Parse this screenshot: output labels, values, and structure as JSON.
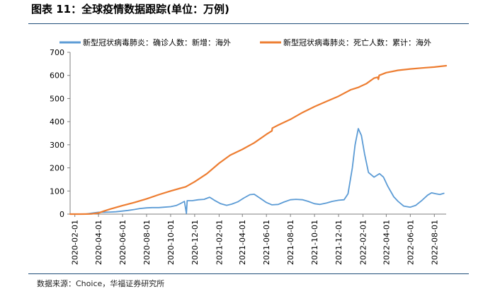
{
  "header": {
    "title": "图表 11：全球疫情数据跟踪(单位：万例)"
  },
  "footer": {
    "source": "数据来源：Choice，华福证券研究所"
  },
  "chart_data": {
    "type": "line",
    "title": "图表 11：全球疫情数据跟踪(单位：万例)",
    "xlabel": "",
    "ylabel": "",
    "ylim": [
      0,
      700
    ],
    "yticks": [
      0,
      100,
      200,
      300,
      400,
      500,
      600,
      700
    ],
    "xlim": [
      "2020-01-20",
      "2022-08-31"
    ],
    "xticks": [
      "2020-02-01",
      "2020-04-01",
      "2020-06-01",
      "2020-08-01",
      "2020-10-01",
      "2020-12-01",
      "2021-02-01",
      "2021-04-01",
      "2021-06-01",
      "2021-08-01",
      "2021-10-01",
      "2021-12-01",
      "2022-02-01",
      "2022-04-01",
      "2022-06-01",
      "2022-08-01"
    ],
    "grid": false,
    "legend_position": "top",
    "series": [
      {
        "name": "新型冠状病毒肺炎：确诊人数：新增：海外",
        "color": "#5b9bd5",
        "points": [
          [
            "2020-01-20",
            0
          ],
          [
            "2020-02-15",
            0
          ],
          [
            "2020-03-01",
            0.5
          ],
          [
            "2020-03-15",
            4
          ],
          [
            "2020-04-01",
            8
          ],
          [
            "2020-04-15",
            8
          ],
          [
            "2020-05-01",
            9
          ],
          [
            "2020-05-15",
            10
          ],
          [
            "2020-06-01",
            13
          ],
          [
            "2020-06-15",
            16
          ],
          [
            "2020-07-01",
            20
          ],
          [
            "2020-07-15",
            24
          ],
          [
            "2020-08-01",
            27
          ],
          [
            "2020-08-15",
            28
          ],
          [
            "2020-09-01",
            28
          ],
          [
            "2020-09-15",
            30
          ],
          [
            "2020-10-01",
            32
          ],
          [
            "2020-10-15",
            37
          ],
          [
            "2020-10-25",
            45
          ],
          [
            "2020-11-05",
            55
          ],
          [
            "2020-11-10",
            3
          ],
          [
            "2020-11-12",
            58
          ],
          [
            "2020-11-25",
            58
          ],
          [
            "2020-12-10",
            62
          ],
          [
            "2020-12-25",
            64
          ],
          [
            "2021-01-08",
            73
          ],
          [
            "2021-01-20",
            60
          ],
          [
            "2021-02-05",
            45
          ],
          [
            "2021-02-20",
            38
          ],
          [
            "2021-03-05",
            43
          ],
          [
            "2021-03-20",
            53
          ],
          [
            "2021-04-05",
            70
          ],
          [
            "2021-04-20",
            84
          ],
          [
            "2021-05-01",
            86
          ],
          [
            "2021-05-15",
            70
          ],
          [
            "2021-06-01",
            50
          ],
          [
            "2021-06-15",
            40
          ],
          [
            "2021-07-01",
            42
          ],
          [
            "2021-07-15",
            52
          ],
          [
            "2021-08-01",
            62
          ],
          [
            "2021-08-15",
            64
          ],
          [
            "2021-09-01",
            62
          ],
          [
            "2021-09-15",
            55
          ],
          [
            "2021-10-01",
            45
          ],
          [
            "2021-10-15",
            42
          ],
          [
            "2021-11-01",
            48
          ],
          [
            "2021-11-15",
            55
          ],
          [
            "2021-12-01",
            60
          ],
          [
            "2021-12-15",
            62
          ],
          [
            "2021-12-25",
            88
          ],
          [
            "2022-01-05",
            200
          ],
          [
            "2022-01-12",
            300
          ],
          [
            "2022-01-20",
            370
          ],
          [
            "2022-01-28",
            340
          ],
          [
            "2022-02-05",
            260
          ],
          [
            "2022-02-15",
            180
          ],
          [
            "2022-03-01",
            160
          ],
          [
            "2022-03-15",
            175
          ],
          [
            "2022-03-25",
            160
          ],
          [
            "2022-04-05",
            120
          ],
          [
            "2022-04-20",
            75
          ],
          [
            "2022-05-01",
            55
          ],
          [
            "2022-05-15",
            35
          ],
          [
            "2022-06-01",
            30
          ],
          [
            "2022-06-15",
            38
          ],
          [
            "2022-07-01",
            60
          ],
          [
            "2022-07-15",
            82
          ],
          [
            "2022-07-25",
            92
          ],
          [
            "2022-08-05",
            88
          ],
          [
            "2022-08-15",
            85
          ],
          [
            "2022-08-25",
            90
          ]
        ]
      },
      {
        "name": "新型冠状病毒肺炎：死亡人数：累计：海外",
        "color": "#ed7d31",
        "points": [
          [
            "2020-01-20",
            0
          ],
          [
            "2020-02-15",
            0
          ],
          [
            "2020-03-01",
            0.3
          ],
          [
            "2020-03-15",
            1
          ],
          [
            "2020-04-01",
            5
          ],
          [
            "2020-04-15",
            13
          ],
          [
            "2020-05-01",
            22
          ],
          [
            "2020-06-01",
            37
          ],
          [
            "2020-07-01",
            50
          ],
          [
            "2020-08-01",
            66
          ],
          [
            "2020-09-01",
            84
          ],
          [
            "2020-10-01",
            100
          ],
          [
            "2020-11-01",
            115
          ],
          [
            "2020-11-08",
            118
          ],
          [
            "2020-12-01",
            140
          ],
          [
            "2021-01-01",
            175
          ],
          [
            "2021-02-01",
            220
          ],
          [
            "2021-03-01",
            255
          ],
          [
            "2021-04-01",
            280
          ],
          [
            "2021-05-01",
            308
          ],
          [
            "2021-06-01",
            345
          ],
          [
            "2021-06-15",
            360
          ],
          [
            "2021-06-16",
            372
          ],
          [
            "2021-07-01",
            385
          ],
          [
            "2021-08-01",
            410
          ],
          [
            "2021-09-01",
            440
          ],
          [
            "2021-10-01",
            465
          ],
          [
            "2021-11-01",
            488
          ],
          [
            "2021-12-01",
            510
          ],
          [
            "2022-01-01",
            538
          ],
          [
            "2022-01-20",
            548
          ],
          [
            "2022-02-10",
            565
          ],
          [
            "2022-03-01",
            588
          ],
          [
            "2022-03-10",
            592
          ],
          [
            "2022-03-12",
            583
          ],
          [
            "2022-03-14",
            600
          ],
          [
            "2022-04-01",
            612
          ],
          [
            "2022-05-01",
            622
          ],
          [
            "2022-06-01",
            628
          ],
          [
            "2022-07-01",
            632
          ],
          [
            "2022-08-01",
            636
          ],
          [
            "2022-08-31",
            642
          ]
        ]
      }
    ]
  }
}
